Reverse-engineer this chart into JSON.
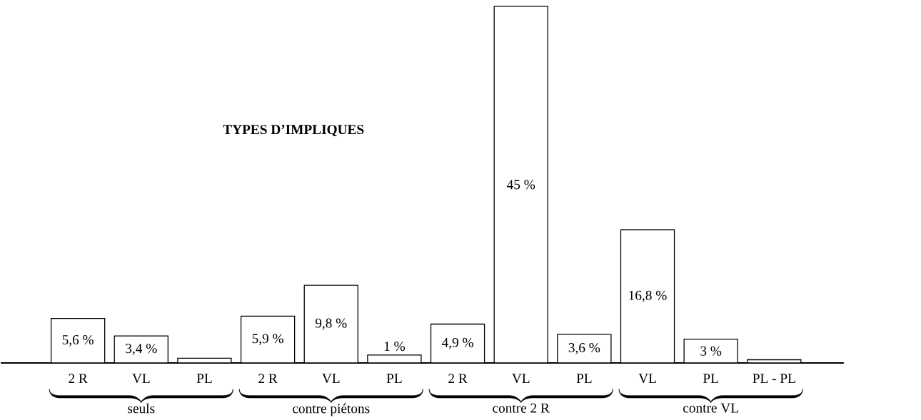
{
  "chart_data": {
    "type": "bar",
    "title": "TYPES D’IMPLIQUES",
    "categories": [
      "2 R",
      "VL",
      "PL",
      "2 R",
      "VL",
      "PL",
      "2 R",
      "VL",
      "PL",
      "VL",
      "PL",
      "PL - PL"
    ],
    "values": [
      5.6,
      3.4,
      0.6,
      5.9,
      9.8,
      1,
      4.9,
      45,
      3.6,
      16.8,
      3,
      0.4
    ],
    "value_labels": [
      "5,6 %",
      "3,4 %",
      null,
      "5,9 %",
      "9,8 %",
      "1 %",
      "4,9 %",
      "45 %",
      "3,6 %",
      "16,8 %",
      "3 %",
      null
    ],
    "color": "#ffffff",
    "ylim": [
      0,
      45
    ],
    "tick_labels": "x",
    "annotations": [
      "seuls",
      "contre piétons",
      "contre 2 R",
      "contre VL"
    ]
  }
}
